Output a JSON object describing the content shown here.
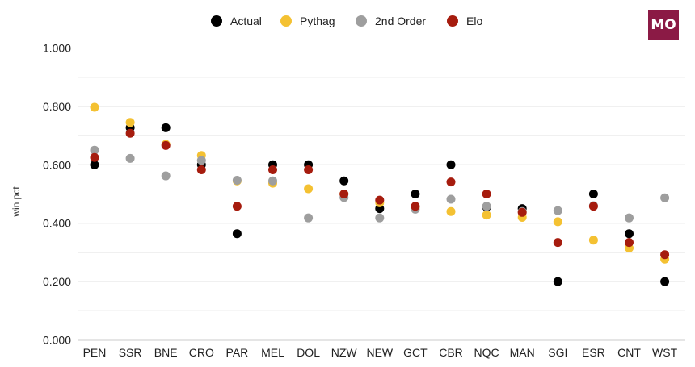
{
  "logo": {
    "text": "MO",
    "color": "#8b1a45"
  },
  "chart_data": {
    "type": "scatter",
    "ylabel": "win pct",
    "xlabel": "",
    "ylim": [
      0,
      1
    ],
    "ytick_labels": [
      "0.000",
      "0.200",
      "0.400",
      "0.600",
      "0.800",
      "1.000"
    ],
    "grid": true,
    "legend_position": "top",
    "categories": [
      "PEN",
      "SSR",
      "BNE",
      "CRO",
      "PAR",
      "MEL",
      "DOL",
      "NZW",
      "NEW",
      "GCT",
      "CBR",
      "NQC",
      "MAN",
      "SGI",
      "ESR",
      "CNT",
      "WST"
    ],
    "series": [
      {
        "name": "Actual",
        "color": "#000000",
        "values": [
          0.6,
          0.727,
          0.727,
          0.6,
          0.364,
          0.6,
          0.6,
          0.545,
          0.45,
          0.5,
          0.6,
          0.455,
          0.45,
          0.2,
          0.5,
          0.364,
          0.2
        ]
      },
      {
        "name": "Pythag",
        "color": "#f4c132",
        "values": [
          0.797,
          0.745,
          0.67,
          0.632,
          0.545,
          0.537,
          0.518,
          0.5,
          0.47,
          0.455,
          0.44,
          0.428,
          0.42,
          0.405,
          0.342,
          0.315,
          0.277
        ]
      },
      {
        "name": "2nd Order",
        "color": "#9e9e9e",
        "values": [
          0.65,
          0.622,
          0.562,
          0.615,
          0.547,
          0.545,
          0.418,
          0.488,
          0.418,
          0.448,
          0.482,
          0.458,
          0.44,
          0.443,
          0.46,
          0.418,
          0.487
        ]
      },
      {
        "name": "Elo",
        "color": "#a61c0e",
        "values": [
          0.625,
          0.708,
          0.666,
          0.583,
          0.458,
          0.583,
          0.583,
          0.5,
          0.479,
          0.458,
          0.541,
          0.5,
          0.437,
          0.334,
          0.458,
          0.334,
          0.292
        ]
      }
    ]
  }
}
